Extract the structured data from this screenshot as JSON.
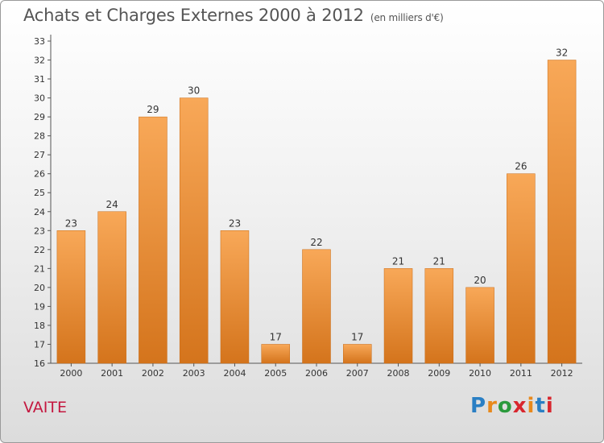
{
  "title": "Achats et Charges Externes 2000 à 2012",
  "unit_note": "(en milliers d'€)",
  "commune": "VAITE",
  "logo": {
    "letters": [
      "P",
      "r",
      "o",
      "x",
      "i",
      "t",
      "i"
    ],
    "colors": [
      "#2a7fc4",
      "#e8891c",
      "#2a9a3c",
      "#d8262e",
      "#e8891c",
      "#2a7fc4",
      "#d8262e"
    ]
  },
  "colors": {
    "bar_light": "#f8a858",
    "bar_dark": "#d4741c",
    "commune": "#c4173f"
  },
  "chart_data": {
    "type": "bar",
    "title": "Achats et Charges Externes 2000 à 2012",
    "subtitle": "(en milliers d'€)",
    "categories": [
      "2000",
      "2001",
      "2002",
      "2003",
      "2004",
      "2005",
      "2006",
      "2007",
      "2008",
      "2009",
      "2010",
      "2011",
      "2012"
    ],
    "values": [
      23,
      24,
      29,
      30,
      23,
      17,
      22,
      17,
      21,
      21,
      20,
      26,
      32
    ],
    "ylim": [
      16,
      33
    ],
    "yticks": [
      16,
      17,
      18,
      19,
      20,
      21,
      22,
      23,
      24,
      25,
      26,
      27,
      28,
      29,
      30,
      31,
      32,
      33
    ],
    "grid": false,
    "legend": "none"
  }
}
